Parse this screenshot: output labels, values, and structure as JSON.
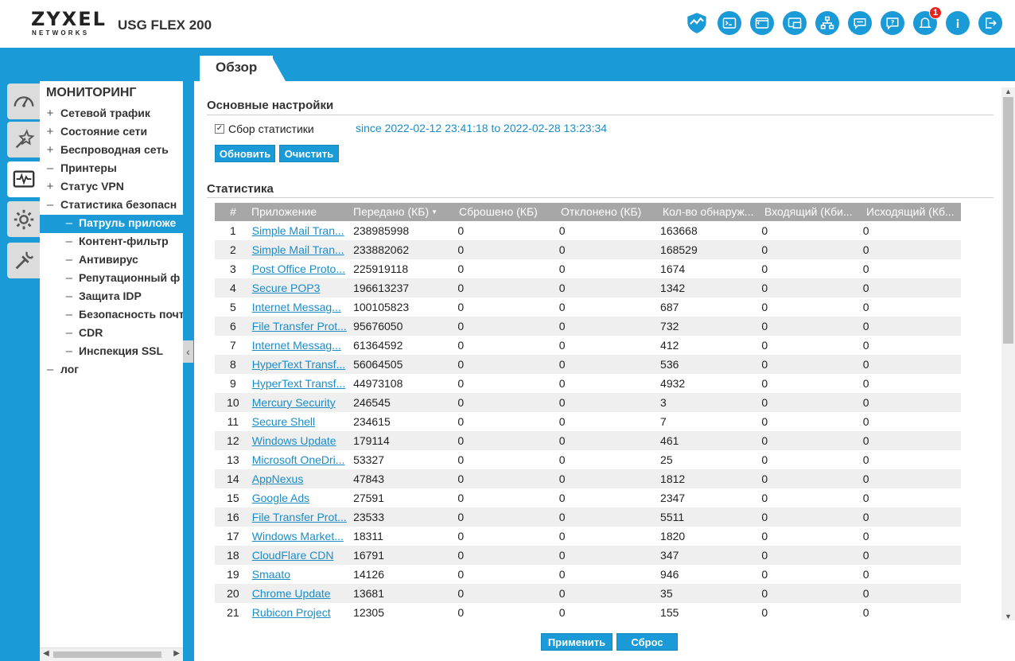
{
  "header": {
    "brand": "ZYXEL",
    "brand_sub": "NETWORKS",
    "model": "USG FLEX 200",
    "notification_count": "1",
    "icons": [
      "shield-icon",
      "terminal-icon",
      "cli-icon",
      "window-icon",
      "network-icon",
      "chat-icon",
      "help-icon",
      "bell-icon",
      "info-icon",
      "logout-icon"
    ]
  },
  "tab": {
    "label": "Обзор"
  },
  "sidebar": {
    "title": "МОНИТОРИНГ",
    "items": [
      {
        "prefix": "+",
        "label": "Сетевой трафик"
      },
      {
        "prefix": "+",
        "label": "Состояние сети"
      },
      {
        "prefix": "+",
        "label": "Беспроводная сеть"
      },
      {
        "prefix": "–",
        "label": "Принтеры"
      },
      {
        "prefix": "+",
        "label": "Статус VPN"
      },
      {
        "prefix": "–",
        "label": "Статистика безопасн"
      },
      {
        "prefix": "–",
        "label": "Патруль приложе"
      },
      {
        "prefix": "–",
        "label": "Контент-фильтр"
      },
      {
        "prefix": "–",
        "label": "Антивирус"
      },
      {
        "prefix": "–",
        "label": "Репутационный ф"
      },
      {
        "prefix": "–",
        "label": "Защита IDP"
      },
      {
        "prefix": "–",
        "label": "Безопасность почт"
      },
      {
        "prefix": "–",
        "label": "CDR"
      },
      {
        "prefix": "–",
        "label": "Инспекция SSL"
      },
      {
        "prefix": "–",
        "label": "лог"
      }
    ]
  },
  "main": {
    "basic_settings_title": "Основные настройки",
    "collect_stats_label": "Сбор статистики",
    "collect_stats_checked": true,
    "since_text": "since 2022-02-12 23:41:18 to 2022-02-28 13:23:34",
    "refresh_label": "Обновить",
    "clear_label": "Очистить",
    "stats_title": "Статистика",
    "columns": [
      "#",
      "Приложение",
      "Передано (КБ)",
      "Сброшено (КБ)",
      "Отклонено (КБ)",
      "Кол-во обнаруж...",
      "Входящий (Кби...",
      "Исходящий (Кб..."
    ],
    "rows": [
      [
        "1",
        "Simple Mail Tran...",
        "238985998",
        "0",
        "0",
        "163668",
        "0",
        "0"
      ],
      [
        "2",
        "Simple Mail Tran...",
        "233882062",
        "0",
        "0",
        "168529",
        "0",
        "0"
      ],
      [
        "3",
        "Post Office Proto...",
        "225919118",
        "0",
        "0",
        "1674",
        "0",
        "0"
      ],
      [
        "4",
        "Secure POP3",
        "196613237",
        "0",
        "0",
        "1342",
        "0",
        "0"
      ],
      [
        "5",
        "Internet Messag...",
        "100105823",
        "0",
        "0",
        "687",
        "0",
        "0"
      ],
      [
        "6",
        "File Transfer Prot...",
        "95676050",
        "0",
        "0",
        "732",
        "0",
        "0"
      ],
      [
        "7",
        "Internet Messag...",
        "61364592",
        "0",
        "0",
        "412",
        "0",
        "0"
      ],
      [
        "8",
        "HyperText Transf...",
        "56064505",
        "0",
        "0",
        "536",
        "0",
        "0"
      ],
      [
        "9",
        "HyperText Transf...",
        "44973108",
        "0",
        "0",
        "4932",
        "0",
        "0"
      ],
      [
        "10",
        "Mercury Security",
        "246545",
        "0",
        "0",
        "3",
        "0",
        "0"
      ],
      [
        "11",
        "Secure Shell",
        "234615",
        "0",
        "0",
        "7",
        "0",
        "0"
      ],
      [
        "12",
        "Windows Update",
        "179114",
        "0",
        "0",
        "461",
        "0",
        "0"
      ],
      [
        "13",
        "Microsoft OneDri...",
        "53327",
        "0",
        "0",
        "25",
        "0",
        "0"
      ],
      [
        "14",
        "AppNexus",
        "47843",
        "0",
        "0",
        "1812",
        "0",
        "0"
      ],
      [
        "15",
        "Google Ads",
        "27591",
        "0",
        "0",
        "2347",
        "0",
        "0"
      ],
      [
        "16",
        "File Transfer Prot...",
        "23533",
        "0",
        "0",
        "5511",
        "0",
        "0"
      ],
      [
        "17",
        "Windows Market...",
        "18311",
        "0",
        "0",
        "1820",
        "0",
        "0"
      ],
      [
        "18",
        "CloudFlare CDN",
        "16791",
        "0",
        "0",
        "347",
        "0",
        "0"
      ],
      [
        "19",
        "Smaato",
        "14126",
        "0",
        "0",
        "946",
        "0",
        "0"
      ],
      [
        "20",
        "Chrome Update",
        "13681",
        "0",
        "0",
        "35",
        "0",
        "0"
      ],
      [
        "21",
        "Rubicon Project",
        "12305",
        "0",
        "0",
        "155",
        "0",
        "0"
      ]
    ],
    "apply_label": "Применить",
    "reset_label": "Сброс"
  },
  "colors": {
    "accent": "#1a9ad6",
    "table_header": "#a7a7a7",
    "link": "#1a8dc7",
    "badge": "#e8231f"
  }
}
